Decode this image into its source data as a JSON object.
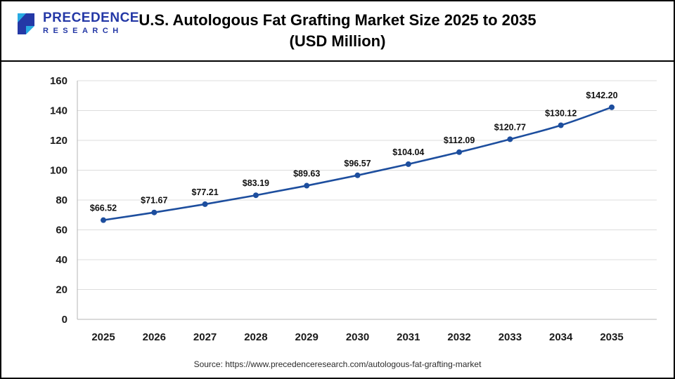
{
  "header": {
    "logo_line1": "PRECEDENCE",
    "logo_line2": "RESEARCH",
    "title_line1": "U.S. Autologous Fat Grafting Market Size 2025 to 2035",
    "title_line2": "(USD Million)"
  },
  "chart_data": {
    "type": "line",
    "title": "U.S. Autologous Fat Grafting Market Size 2025 to 2035 (USD Million)",
    "categories": [
      "2025",
      "2026",
      "2027",
      "2028",
      "2029",
      "2030",
      "2031",
      "2032",
      "2033",
      "2034",
      "2035"
    ],
    "values": [
      66.52,
      71.67,
      77.21,
      83.19,
      89.63,
      96.57,
      104.04,
      112.09,
      120.77,
      130.12,
      142.2
    ],
    "point_labels": [
      "$66.52",
      "$71.67",
      "$77.21",
      "$83.19",
      "$89.63",
      "$96.57",
      "$104.04",
      "$112.09",
      "$120.77",
      "$130.12",
      "$142.20"
    ],
    "ylim": [
      0,
      160
    ],
    "ytick_step": 20,
    "ytick_labels": [
      "0",
      "20",
      "40",
      "60",
      "80",
      "100",
      "120",
      "140",
      "160"
    ],
    "grid": true,
    "legend_position": "none",
    "line_color": "#1d4e9e",
    "point_color": "#1d4e9e",
    "label_color": "#111111",
    "tick_color": "#1a1a1a",
    "grid_color": "#dcdcdc",
    "axis_color": "#b5b5b5"
  },
  "footer": {
    "source": "Source: https://www.precedenceresearch.com/autologous-fat-grafting-market"
  }
}
